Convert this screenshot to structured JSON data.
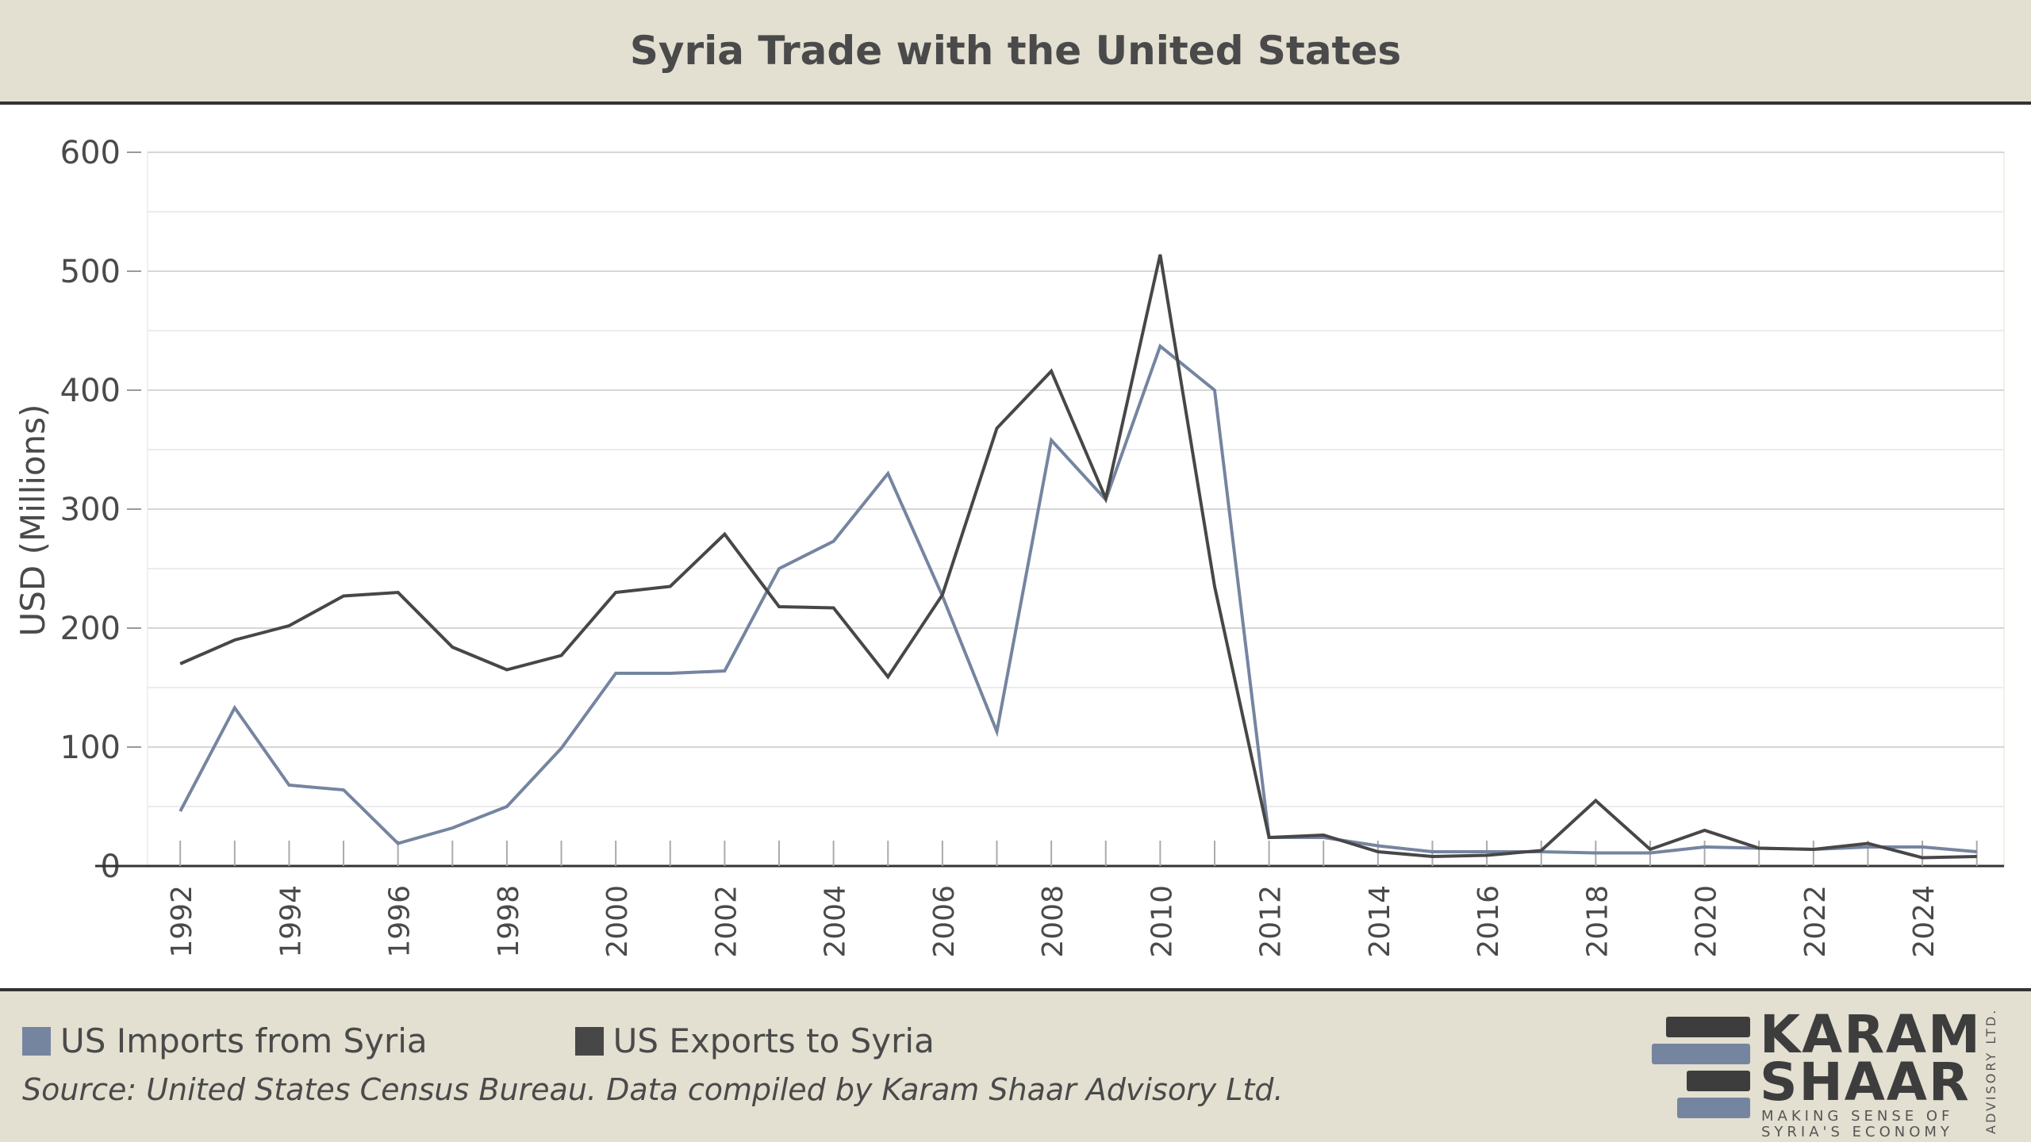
{
  "header": {
    "title": "Syria Trade with the United States"
  },
  "legend": {
    "imports_label": "US Imports from Syria",
    "exports_label": "US Exports to Syria"
  },
  "source": "Source: United States Census Bureau. Data compiled by Karam Shaar Advisory Ltd.",
  "logo": {
    "line1": "KARAM",
    "line2": "SHAAR",
    "tagline1": "MAKING SENSE OF",
    "tagline2": "SYRIA'S ECONOMY",
    "vertical": "ADVISORY LTD."
  },
  "colors": {
    "imports": "#7585a0",
    "exports": "#474747",
    "background": "#e3dfd1"
  },
  "chart_data": {
    "type": "line",
    "title": "Syria Trade with the United States",
    "xlabel": "",
    "ylabel": "USD (Millions)",
    "ylim": [
      0,
      600
    ],
    "yticks": [
      0,
      100,
      200,
      300,
      400,
      500,
      600
    ],
    "x": [
      1992,
      1993,
      1994,
      1995,
      1996,
      1997,
      1998,
      1999,
      2000,
      2001,
      2002,
      2003,
      2004,
      2005,
      2006,
      2007,
      2008,
      2009,
      2010,
      2011,
      2012,
      2013,
      2014,
      2015,
      2016,
      2017,
      2018,
      2019,
      2020,
      2021,
      2022,
      2023,
      2024,
      2025
    ],
    "xtick_labels": [
      "1992",
      "1994",
      "1996",
      "1998",
      "2000",
      "2002",
      "2004",
      "2006",
      "2008",
      "2010",
      "2012",
      "2014",
      "2016",
      "2018",
      "2020",
      "2022",
      "2024"
    ],
    "legend_position": "bottom",
    "grid": true,
    "series": [
      {
        "name": "US Imports from Syria",
        "color": "#7585a0",
        "values": [
          46,
          133,
          68,
          64,
          19,
          32,
          50,
          99,
          162,
          162,
          164,
          250,
          273,
          330,
          227,
          113,
          358,
          308,
          437,
          400,
          24,
          24,
          17,
          12,
          12,
          12,
          11,
          11,
          16,
          15,
          14,
          16,
          16,
          12
        ]
      },
      {
        "name": "US Exports to Syria",
        "color": "#474747",
        "values": [
          170,
          190,
          202,
          227,
          230,
          184,
          165,
          177,
          230,
          235,
          279,
          218,
          217,
          159,
          228,
          368,
          416,
          309,
          514,
          235,
          24,
          26,
          12,
          8,
          9,
          13,
          55,
          14,
          30,
          15,
          14,
          19,
          7,
          8
        ]
      }
    ]
  }
}
